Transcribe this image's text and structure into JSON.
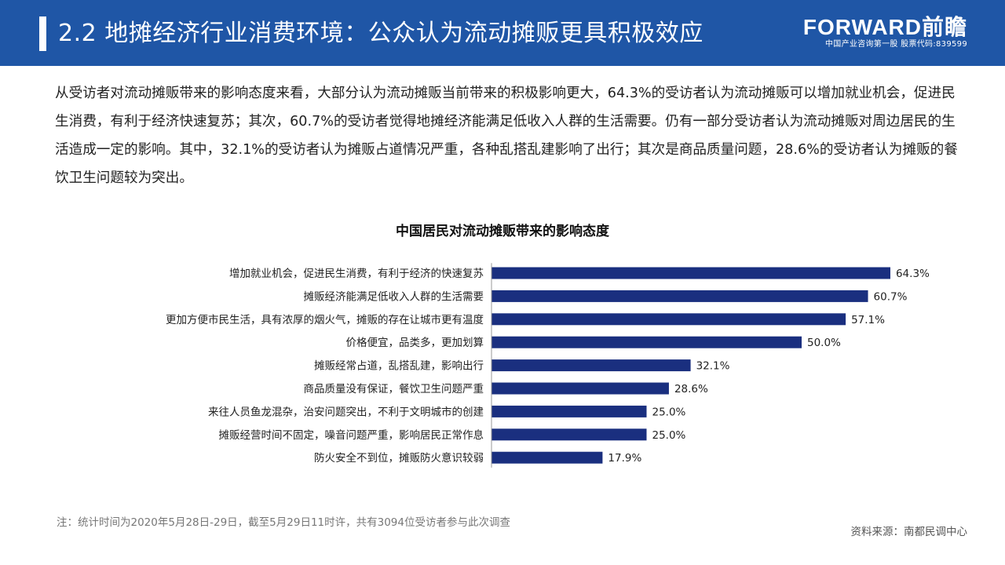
{
  "header": {
    "title": "2.2 地摊经济行业消费环境：公众认为流动摊贩更具积极效应",
    "brand_logo": "FORWARD前瞻",
    "brand_tagline": "中国产业咨询第一股 股票代码:839599"
  },
  "paragraph": "从受访者对流动摊贩带来的影响态度来看，大部分认为流动摊贩当前带来的积极影响更大，64.3%的受访者认为流动摊贩可以增加就业机会，促进民生消费，有利于经济快速复苏；其次，60.7%的受访者觉得地摊经济能满足低收入人群的生活需要。仍有一部分受访者认为流动摊贩对周边居民的生活造成一定的影响。其中，32.1%的受访者认为摊贩占道情况严重，各种乱搭乱建影响了出行；其次是商品质量问题，28.6%的受访者认为摊贩的餐饮卫生问题较为突出。",
  "chart_data": {
    "type": "bar",
    "orientation": "horizontal",
    "title": "中国居民对流动摊贩带来的影响态度",
    "categories": [
      "增加就业机会，促进民生消费，有利于经济的快速复苏",
      "摊贩经济能满足低收入人群的生活需要",
      "更加方便市民生活，具有浓厚的烟火气，摊贩的存在让城市更有温度",
      "价格便宜，品类多，更加划算",
      "摊贩经常占道，乱搭乱建，影响出行",
      "商品质量没有保证，餐饮卫生问题严重",
      "来往人员鱼龙混杂，治安问题突出，不利于文明城市的创建",
      "摊贩经营时间不固定，噪音问题严重，影响居民正常作息",
      "防火安全不到位，摊贩防火意识较弱"
    ],
    "values": [
      64.3,
      60.7,
      57.1,
      50.0,
      32.1,
      28.6,
      25.0,
      25.0,
      17.9
    ],
    "value_labels": [
      "64.3%",
      "60.7%",
      "57.1%",
      "50.0%",
      "32.1%",
      "28.6%",
      "25.0%",
      "25.0%",
      "17.9%"
    ],
    "unit": "%",
    "xlim": [
      0,
      100
    ],
    "grid": false,
    "bar_color": "#1a2f7f"
  },
  "footer": {
    "note": "注：统计时间为2020年5月28日-29日，截至5月29日11时许，共有3094位受访者参与此次调查",
    "source": "资料来源：南都民调中心"
  },
  "colors": {
    "header_bg": "#1f56a6",
    "bar": "#1a2f7f"
  }
}
